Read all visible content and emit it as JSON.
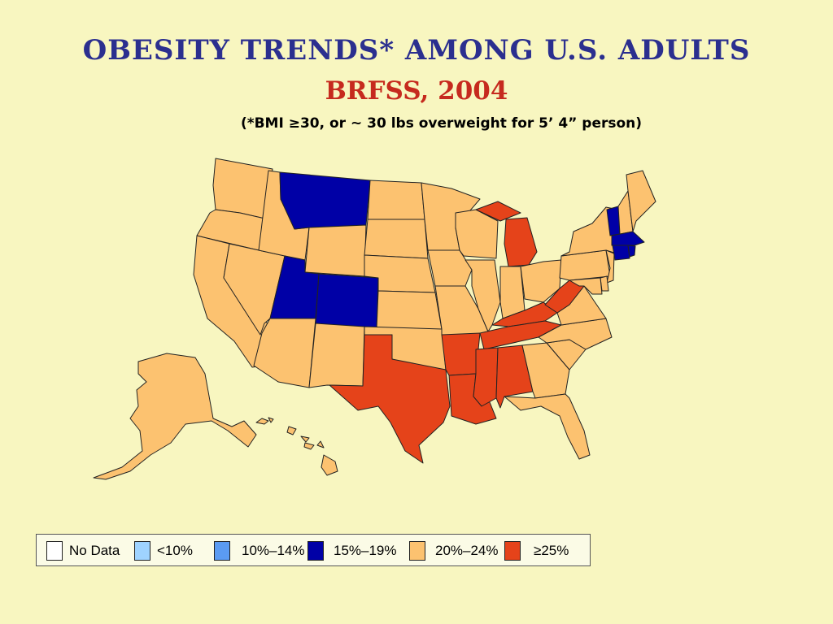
{
  "title": "Obesity Trends* Among U.S. Adults",
  "year_label": "BRFSS, 2004",
  "subtitle": "(*BMI ≥30, or ~ 30 lbs overweight for 5’ 4” person)",
  "colors": {
    "no_data": "#ffffff",
    "lt10": "#9fd3ff",
    "c10_14": "#5b9bf2",
    "c15_19": "#0000a6",
    "c20_24": "#fcc270",
    "ge25": "#e5431a"
  },
  "legend": [
    {
      "key": "no_data",
      "label": "No Data"
    },
    {
      "key": "lt10",
      "label": "<10%"
    },
    {
      "key": "c10_14",
      "label": "10%–14%"
    },
    {
      "key": "c15_19",
      "label": "15%–19%"
    },
    {
      "key": "c20_24",
      "label": "20%–24%"
    },
    {
      "key": "ge25",
      "label": "≥25%"
    }
  ],
  "states": {
    "WA": "c20_24",
    "OR": "c20_24",
    "CA": "c20_24",
    "NV": "c20_24",
    "ID": "c20_24",
    "MT": "c15_19",
    "WY": "c20_24",
    "UT": "c15_19",
    "CO": "c15_19",
    "AZ": "c20_24",
    "NM": "c20_24",
    "ND": "c20_24",
    "SD": "c20_24",
    "NE": "c20_24",
    "KS": "c20_24",
    "OK": "c20_24",
    "TX": "ge25",
    "MN": "c20_24",
    "IA": "c20_24",
    "MO": "c20_24",
    "AR": "ge25",
    "LA": "ge25",
    "WI": "c20_24",
    "IL": "c20_24",
    "MI": "ge25",
    "IN": "c20_24",
    "OH": "c20_24",
    "KY": "ge25",
    "TN": "ge25",
    "MS": "ge25",
    "AL": "ge25",
    "GA": "c20_24",
    "FL": "c20_24",
    "SC": "c20_24",
    "NC": "c20_24",
    "VA": "c20_24",
    "WV": "ge25",
    "PA": "c20_24",
    "NY": "c20_24",
    "ME": "c20_24",
    "VT": "c15_19",
    "NH": "c20_24",
    "MA": "c15_19",
    "CT": "c15_19",
    "RI": "c15_19",
    "NJ": "c20_24",
    "DE": "c20_24",
    "MD": "c20_24",
    "AK": "c20_24",
    "HI": "c20_24"
  }
}
